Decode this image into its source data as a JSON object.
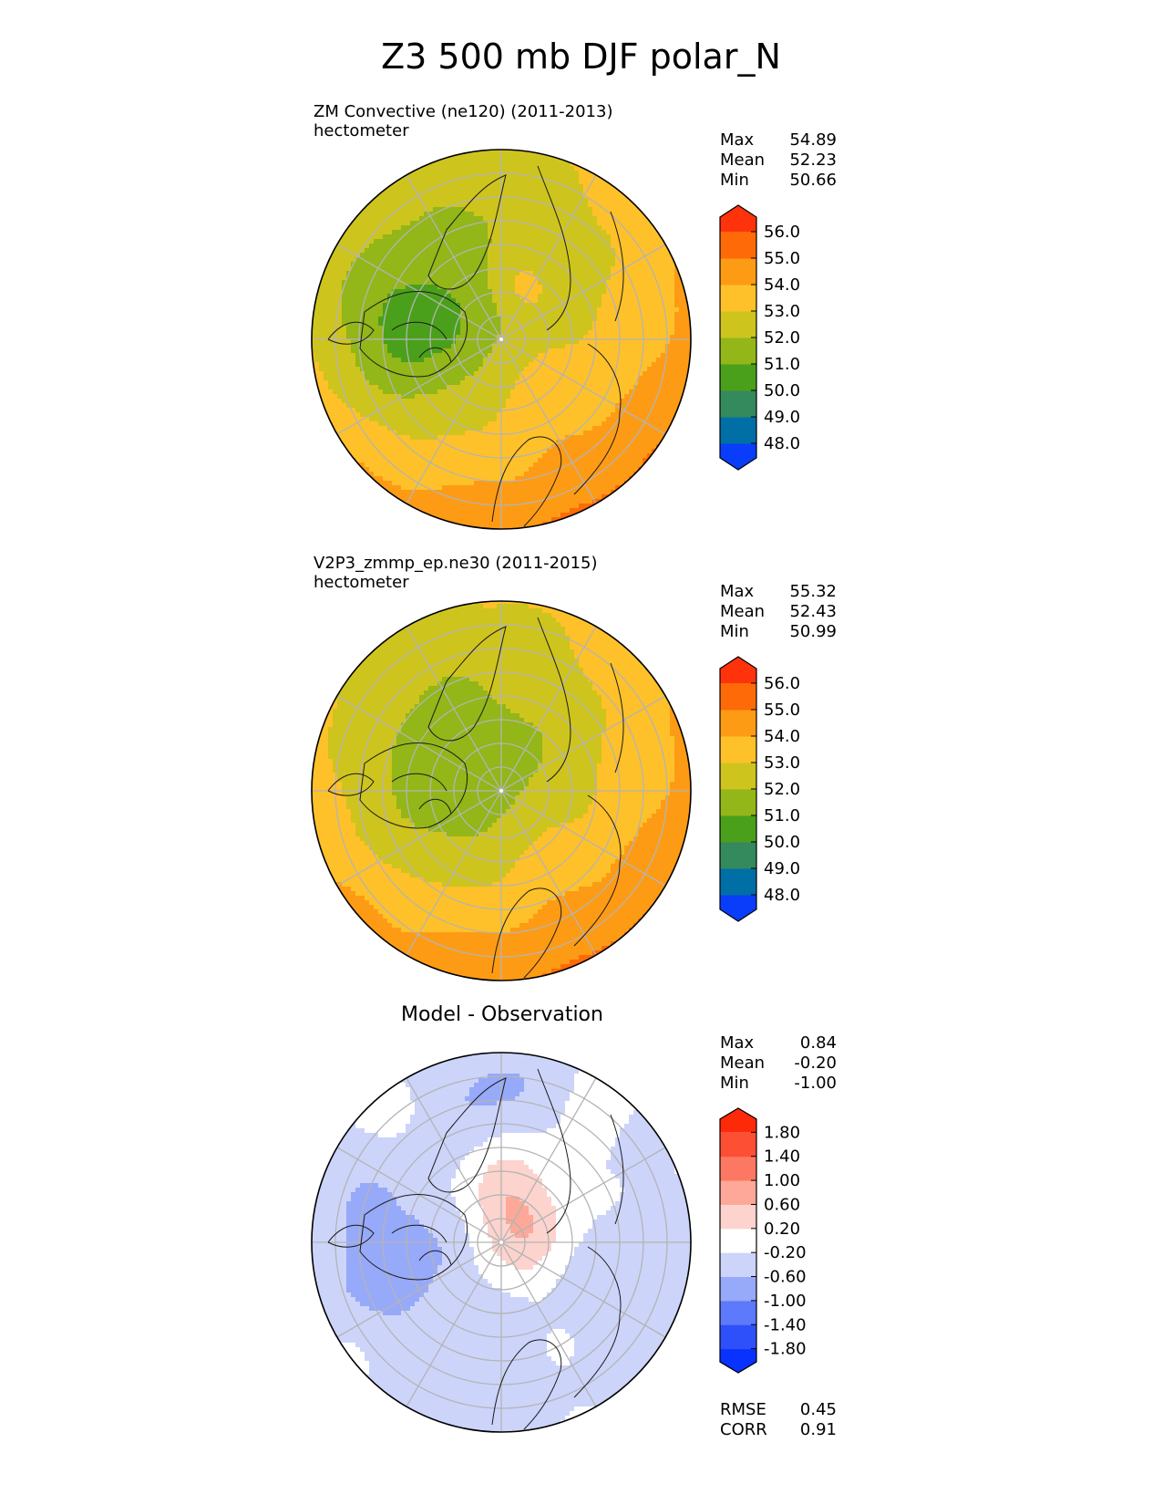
{
  "title": "Z3 500 mb DJF polar_N",
  "chart_data": [
    {
      "type": "heatmap",
      "projection": "north-polar-stereographic",
      "title": "ZM Convective (ne120) (2011-2013)",
      "units": "hectometer",
      "stats": {
        "max_label": "Max",
        "max": "54.89",
        "mean_label": "Mean",
        "mean": "52.23",
        "min_label": "Min",
        "min": "50.66"
      },
      "colorbar": {
        "levels": [
          "48.0",
          "49.0",
          "50.0",
          "51.0",
          "52.0",
          "53.0",
          "54.0",
          "55.0",
          "56.0"
        ],
        "colors": [
          "#0a3dfa",
          "#006fa6",
          "#348a5d",
          "#4aa01a",
          "#93b618",
          "#cec41e",
          "#fec12a",
          "#fe9b14",
          "#fe6a08",
          "#fe330c"
        ],
        "extend": "both"
      },
      "field": {
        "base": 52.2,
        "x_gradient": 0.7,
        "y_gradient": 1.1,
        "radial_gradient": 1.6,
        "anomalies": [
          {
            "dx": -0.47,
            "dy": -0.05,
            "s": 0.28,
            "a": -1.6
          },
          {
            "dx": 0.12,
            "dy": -0.28,
            "s": 0.12,
            "a": 1.1
          },
          {
            "dx": 0.2,
            "dy": 0.25,
            "s": 0.25,
            "a": 0.6
          }
        ]
      }
    },
    {
      "type": "heatmap",
      "projection": "north-polar-stereographic",
      "title": "V2P3_zmmp_ep.ne30 (2011-2015)",
      "units": "hectometer",
      "stats": {
        "max_label": "Max",
        "max": "55.32",
        "mean_label": "Mean",
        "mean": "52.43",
        "min_label": "Min",
        "min": "50.99"
      },
      "colorbar": {
        "levels": [
          "48.0",
          "49.0",
          "50.0",
          "51.0",
          "52.0",
          "53.0",
          "54.0",
          "55.0",
          "56.0"
        ],
        "colors": [
          "#0a3dfa",
          "#006fa6",
          "#348a5d",
          "#4aa01a",
          "#93b618",
          "#cec41e",
          "#fec12a",
          "#fe9b14",
          "#fe6a08",
          "#fe330c"
        ],
        "extend": "both"
      },
      "field": {
        "base": 52.5,
        "x_gradient": 0.5,
        "y_gradient": 1.0,
        "radial_gradient": 1.5,
        "anomalies": [
          {
            "dx": -0.2,
            "dy": -0.02,
            "s": 0.35,
            "a": -1.2
          },
          {
            "dx": 0.2,
            "dy": 0.3,
            "s": 0.2,
            "a": 0.5
          }
        ]
      }
    },
    {
      "type": "heatmap",
      "projection": "north-polar-stereographic",
      "title": "Model - Observation",
      "units": "",
      "stats": {
        "max_label": "Max",
        "max": "0.84",
        "mean_label": "Mean",
        "mean": "-0.20",
        "min_label": "Min",
        "min": "-1.00"
      },
      "metrics": {
        "rmse_label": "RMSE",
        "rmse": "0.45",
        "corr_label": "CORR",
        "corr": "0.91"
      },
      "colorbar": {
        "levels": [
          "-1.80",
          "-1.40",
          "-1.00",
          "-0.60",
          "-0.20",
          "0.20",
          "0.60",
          "1.00",
          "1.40",
          "1.80"
        ],
        "colors": [
          "#0a32ff",
          "#2d50fa",
          "#5c7afb",
          "#97a9f9",
          "#ccd4fa",
          "#ffffff",
          "#fdd3cd",
          "#fda898",
          "#fd7862",
          "#fd4f33",
          "#fd2a0a"
        ],
        "extend": "both"
      },
      "field": {
        "base": -0.15,
        "x_gradient": 0.0,
        "y_gradient": 0.0,
        "radial_gradient": 0.0,
        "anomalies": [
          {
            "dx": 0.08,
            "dy": -0.12,
            "s": 0.2,
            "a": 0.85
          },
          {
            "dx": -0.58,
            "dy": 0.05,
            "s": 0.3,
            "a": -0.75
          },
          {
            "dx": -0.08,
            "dy": -0.85,
            "s": 0.22,
            "a": -0.55
          },
          {
            "dx": -0.1,
            "dy": 0.75,
            "s": 0.25,
            "a": -0.45
          },
          {
            "dx": 0.72,
            "dy": 0.1,
            "s": 0.3,
            "a": -0.35
          },
          {
            "dx": 0.0,
            "dy": -0.35,
            "s": 0.16,
            "a": 0.15
          }
        ]
      }
    }
  ]
}
